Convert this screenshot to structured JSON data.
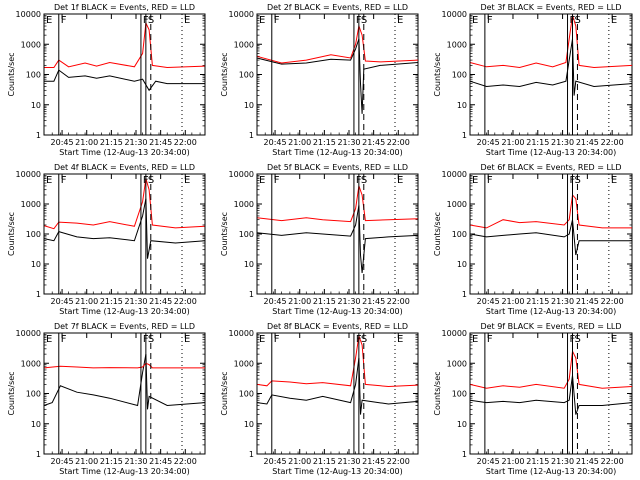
{
  "chart_data": {
    "type": "line",
    "title_template": "Det {det} BLACK = Events, RED = LLD",
    "ylabel": "Counts/sec",
    "xlabel": "Start Time (12-Aug-13 20:34:00)",
    "y_scale": "log",
    "ylim": [
      1,
      10000
    ],
    "y_ticks": [
      "1",
      "10",
      "100",
      "1000",
      "10000"
    ],
    "x_ticks": [
      "20:45",
      "21:00",
      "21:15",
      "21:30",
      "21:45",
      "22:00"
    ],
    "xlim": [
      "20:34",
      "22:12"
    ],
    "series": [
      {
        "name": "Events",
        "color": "#000000"
      },
      {
        "name": "LLD",
        "color": "#ff0000"
      }
    ],
    "markers": [
      {
        "label": "E",
        "time": "20:34",
        "style": "solid"
      },
      {
        "label": "F",
        "time": "20:43",
        "style": "solid"
      },
      {
        "label": "F",
        "time": "21:33",
        "style": "solid"
      },
      {
        "label": "S",
        "time": "21:36",
        "style": "solid"
      },
      {
        "label": "",
        "time": "21:39",
        "style": "dashed"
      },
      {
        "label": "E",
        "time": "21:58",
        "style": "dotted"
      },
      {
        "label": "",
        "time": "22:12",
        "style": "dotted"
      }
    ],
    "panels": [
      {
        "det": "1f",
        "black": [
          [
            0,
            60
          ],
          [
            6,
            60
          ],
          [
            9,
            140
          ],
          [
            15,
            80
          ],
          [
            25,
            90
          ],
          [
            32,
            75
          ],
          [
            40,
            90
          ],
          [
            55,
            60
          ],
          [
            60,
            70
          ],
          [
            64,
            30
          ],
          [
            68,
            60
          ],
          [
            75,
            50
          ],
          [
            98,
            50
          ]
        ],
        "red": [
          [
            0,
            170
          ],
          [
            6,
            170
          ],
          [
            9,
            300
          ],
          [
            15,
            180
          ],
          [
            25,
            240
          ],
          [
            32,
            190
          ],
          [
            40,
            250
          ],
          [
            55,
            180
          ],
          [
            60,
            500
          ],
          [
            62,
            5000
          ],
          [
            64,
            3000
          ],
          [
            66,
            200
          ],
          [
            75,
            170
          ],
          [
            98,
            190
          ]
        ]
      },
      {
        "det": "2f",
        "black": [
          [
            0,
            350
          ],
          [
            15,
            220
          ],
          [
            30,
            240
          ],
          [
            45,
            320
          ],
          [
            57,
            300
          ],
          [
            60,
            700
          ],
          [
            62,
            1500
          ],
          [
            63,
            50
          ],
          [
            64,
            5
          ],
          [
            65,
            150
          ],
          [
            75,
            200
          ],
          [
            98,
            250
          ]
        ],
        "red": [
          [
            0,
            400
          ],
          [
            15,
            240
          ],
          [
            30,
            300
          ],
          [
            45,
            450
          ],
          [
            57,
            350
          ],
          [
            60,
            1000
          ],
          [
            62,
            4000
          ],
          [
            64,
            2000
          ],
          [
            66,
            280
          ],
          [
            75,
            260
          ],
          [
            98,
            300
          ]
        ]
      },
      {
        "det": "3f",
        "black": [
          [
            0,
            60
          ],
          [
            10,
            40
          ],
          [
            20,
            45
          ],
          [
            30,
            40
          ],
          [
            40,
            55
          ],
          [
            50,
            45
          ],
          [
            58,
            60
          ],
          [
            60,
            300
          ],
          [
            62,
            1500
          ],
          [
            63,
            20
          ],
          [
            64,
            60
          ],
          [
            75,
            40
          ],
          [
            98,
            50
          ]
        ],
        "red": [
          [
            0,
            250
          ],
          [
            10,
            180
          ],
          [
            20,
            200
          ],
          [
            30,
            170
          ],
          [
            40,
            240
          ],
          [
            50,
            180
          ],
          [
            58,
            250
          ],
          [
            60,
            1500
          ],
          [
            62,
            9000
          ],
          [
            64,
            4000
          ],
          [
            66,
            200
          ],
          [
            75,
            170
          ],
          [
            98,
            200
          ]
        ]
      },
      {
        "det": "4f",
        "black": [
          [
            0,
            70
          ],
          [
            6,
            60
          ],
          [
            9,
            120
          ],
          [
            20,
            80
          ],
          [
            30,
            70
          ],
          [
            40,
            75
          ],
          [
            55,
            60
          ],
          [
            60,
            400
          ],
          [
            62,
            1500
          ],
          [
            63,
            15
          ],
          [
            65,
            60
          ],
          [
            80,
            50
          ],
          [
            98,
            60
          ]
        ],
        "red": [
          [
            0,
            190
          ],
          [
            6,
            150
          ],
          [
            9,
            250
          ],
          [
            20,
            230
          ],
          [
            30,
            200
          ],
          [
            40,
            260
          ],
          [
            55,
            180
          ],
          [
            60,
            1200
          ],
          [
            62,
            7000
          ],
          [
            64,
            3000
          ],
          [
            66,
            200
          ],
          [
            80,
            160
          ],
          [
            98,
            180
          ]
        ]
      },
      {
        "det": "5f",
        "black": [
          [
            0,
            110
          ],
          [
            15,
            90
          ],
          [
            30,
            110
          ],
          [
            40,
            100
          ],
          [
            57,
            85
          ],
          [
            60,
            200
          ],
          [
            62,
            900
          ],
          [
            63,
            20
          ],
          [
            64,
            5
          ],
          [
            66,
            70
          ],
          [
            80,
            80
          ],
          [
            98,
            90
          ]
        ],
        "red": [
          [
            0,
            350
          ],
          [
            15,
            280
          ],
          [
            30,
            350
          ],
          [
            40,
            300
          ],
          [
            57,
            260
          ],
          [
            60,
            700
          ],
          [
            62,
            4000
          ],
          [
            64,
            2000
          ],
          [
            66,
            280
          ],
          [
            80,
            300
          ],
          [
            98,
            320
          ]
        ]
      },
      {
        "det": "6f",
        "black": [
          [
            0,
            100
          ],
          [
            10,
            80
          ],
          [
            20,
            90
          ],
          [
            30,
            100
          ],
          [
            40,
            110
          ],
          [
            57,
            80
          ],
          [
            60,
            100
          ],
          [
            62,
            300
          ],
          [
            64,
            20
          ],
          [
            66,
            60
          ],
          [
            80,
            60
          ],
          [
            98,
            60
          ]
        ],
        "red": [
          [
            0,
            200
          ],
          [
            10,
            160
          ],
          [
            20,
            300
          ],
          [
            30,
            240
          ],
          [
            40,
            260
          ],
          [
            57,
            200
          ],
          [
            60,
            300
          ],
          [
            62,
            2000
          ],
          [
            64,
            1500
          ],
          [
            66,
            200
          ],
          [
            80,
            160
          ],
          [
            98,
            160
          ]
        ]
      },
      {
        "det": "7f",
        "black": [
          [
            0,
            40
          ],
          [
            5,
            50
          ],
          [
            10,
            180
          ],
          [
            20,
            110
          ],
          [
            30,
            90
          ],
          [
            40,
            70
          ],
          [
            57,
            40
          ],
          [
            60,
            500
          ],
          [
            62,
            2000
          ],
          [
            63,
            30
          ],
          [
            64,
            80
          ],
          [
            75,
            40
          ],
          [
            98,
            50
          ]
        ],
        "red": [
          [
            0,
            700
          ],
          [
            10,
            800
          ],
          [
            20,
            750
          ],
          [
            30,
            700
          ],
          [
            40,
            720
          ],
          [
            57,
            700
          ],
          [
            60,
            750
          ],
          [
            62,
            1000
          ],
          [
            64,
            900
          ],
          [
            66,
            700
          ],
          [
            80,
            700
          ],
          [
            98,
            700
          ]
        ]
      },
      {
        "det": "8f",
        "black": [
          [
            0,
            50
          ],
          [
            6,
            45
          ],
          [
            9,
            90
          ],
          [
            20,
            70
          ],
          [
            30,
            60
          ],
          [
            40,
            80
          ],
          [
            57,
            50
          ],
          [
            60,
            200
          ],
          [
            62,
            1500
          ],
          [
            63,
            20
          ],
          [
            64,
            60
          ],
          [
            80,
            45
          ],
          [
            98,
            55
          ]
        ],
        "red": [
          [
            0,
            200
          ],
          [
            6,
            180
          ],
          [
            9,
            260
          ],
          [
            20,
            240
          ],
          [
            30,
            210
          ],
          [
            40,
            230
          ],
          [
            57,
            180
          ],
          [
            60,
            1500
          ],
          [
            62,
            8000
          ],
          [
            64,
            4000
          ],
          [
            66,
            200
          ],
          [
            80,
            170
          ],
          [
            98,
            190
          ]
        ]
      },
      {
        "det": "9f",
        "black": [
          [
            0,
            60
          ],
          [
            10,
            50
          ],
          [
            20,
            55
          ],
          [
            30,
            50
          ],
          [
            40,
            60
          ],
          [
            57,
            50
          ],
          [
            60,
            60
          ],
          [
            62,
            400
          ],
          [
            64,
            20
          ],
          [
            66,
            40
          ],
          [
            80,
            40
          ],
          [
            98,
            50
          ]
        ],
        "red": [
          [
            0,
            200
          ],
          [
            10,
            150
          ],
          [
            20,
            180
          ],
          [
            30,
            160
          ],
          [
            40,
            200
          ],
          [
            57,
            150
          ],
          [
            60,
            300
          ],
          [
            62,
            2500
          ],
          [
            64,
            1500
          ],
          [
            66,
            200
          ],
          [
            80,
            150
          ],
          [
            98,
            170
          ]
        ]
      }
    ]
  }
}
